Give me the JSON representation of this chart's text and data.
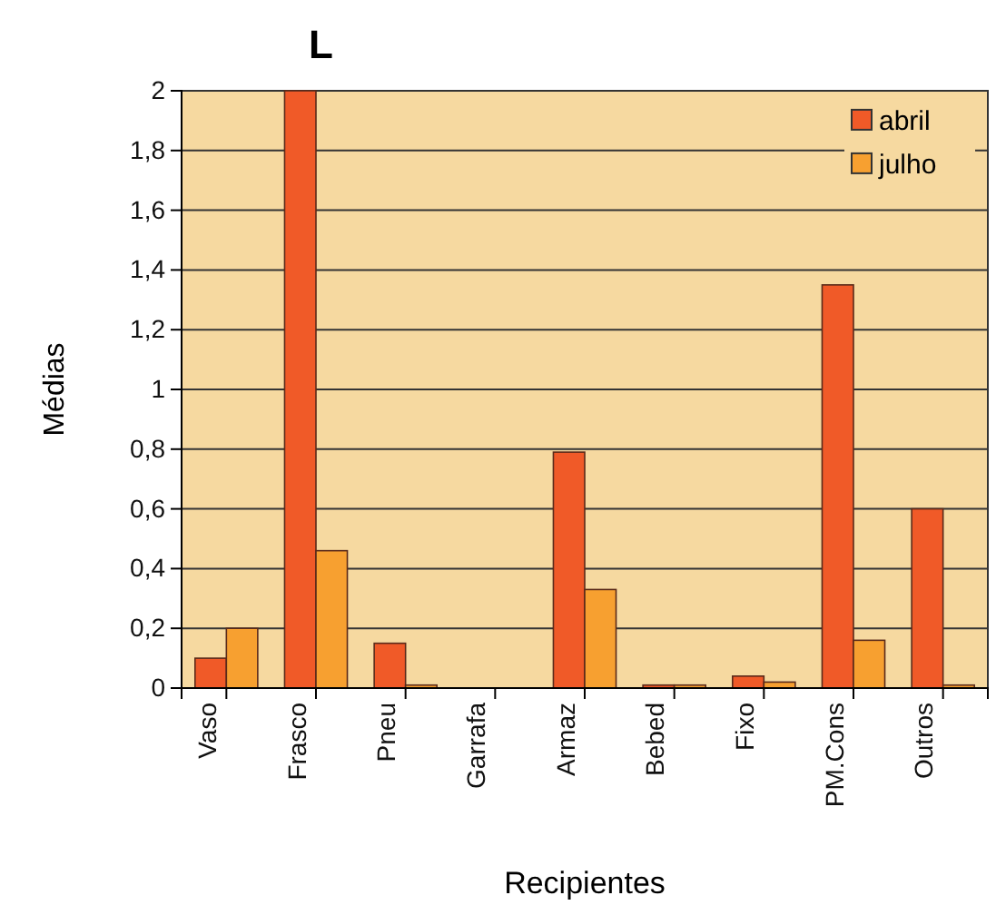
{
  "chart_data": {
    "type": "bar",
    "title": "L",
    "xlabel": "Recipientes",
    "ylabel": "Médias",
    "categories": [
      "Vaso",
      "Frasco",
      "Pneu",
      "Garrafa",
      "Armaz",
      "Bebed",
      "Fixo",
      "PM.Cons",
      "Outros"
    ],
    "series": [
      {
        "name": "abril",
        "color": "#f05a28",
        "values": [
          0.1,
          2.0,
          0.15,
          0,
          0.79,
          0.01,
          0.04,
          1.35,
          0.6
        ]
      },
      {
        "name": "julho",
        "color": "#f7a030",
        "values": [
          0.2,
          0.46,
          0.01,
          0,
          0.33,
          0.01,
          0.02,
          0.16,
          0.01
        ]
      }
    ],
    "ylim": [
      0,
      2
    ],
    "yticks": [
      0,
      {
        "value": 0.2,
        "label": "0,2"
      },
      {
        "value": 0.4,
        "label": "0,4"
      },
      {
        "value": 0.6,
        "label": "0,6"
      },
      {
        "value": 0.8,
        "label": "0,8"
      },
      1,
      {
        "value": 1.2,
        "label": "1,2"
      },
      {
        "value": 1.4,
        "label": "1,4"
      },
      {
        "value": 1.6,
        "label": "1,6"
      },
      {
        "value": 1.8,
        "label": "1,8"
      },
      2
    ],
    "grid": "y",
    "legend": "top right"
  }
}
